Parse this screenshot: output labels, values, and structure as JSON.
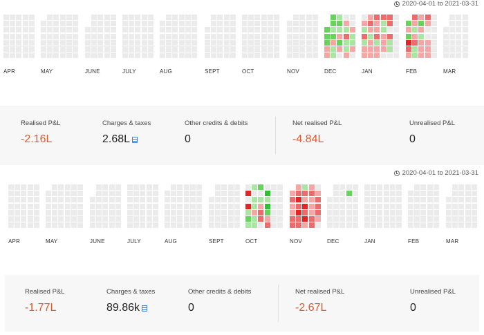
{
  "panels": [
    {
      "date_range": "2020-04-01 to 2021-03-31",
      "months": [
        "APR",
        "MAY",
        "JUNE",
        "JULY",
        "AUG",
        "SEPT",
        "OCT",
        "NOV",
        "DEC",
        "JAN",
        "FEB",
        "MAR"
      ],
      "summary": {
        "realised_pnl": {
          "label": "Realised P&L",
          "value": "-2.16L"
        },
        "charges": {
          "label": "Charges & taxes",
          "value": "2.68L"
        },
        "other": {
          "label": "Other credits & debits",
          "value": "0"
        },
        "net": {
          "label": "Net realised P&L",
          "value": "-4.84L"
        },
        "unrealised": {
          "label": "Unrealised P&L",
          "value": "0"
        }
      }
    },
    {
      "date_range": "2020-04-01 to 2021-03-31",
      "months": [
        "APR",
        "MAY",
        "JUNE",
        "JULY",
        "AUG",
        "SEPT",
        "OCT",
        "NOV",
        "DEC",
        "JAN",
        "FEB",
        "MAR"
      ],
      "summary": {
        "realised_pnl": {
          "label": "Realised P&L",
          "value": "-1.77L"
        },
        "charges": {
          "label": "Charges & taxes",
          "value": "89.86k"
        },
        "other": {
          "label": "Other credits & debits",
          "value": "0"
        },
        "net": {
          "label": "Net realised P&L",
          "value": "-2.67L"
        },
        "unrealised": {
          "label": "Unrealised P&L",
          "value": "0"
        }
      }
    }
  ],
  "colors": {
    "empty": "#ebebeb",
    "gain_light": "#a8e6a1",
    "gain": "#67d35d",
    "gain_dark": "#2fbf32",
    "loss_light": "#f7a6a6",
    "loss": "#ee6b6b",
    "loss_dark": "#e32424",
    "negative_text": "#e4562c"
  }
}
